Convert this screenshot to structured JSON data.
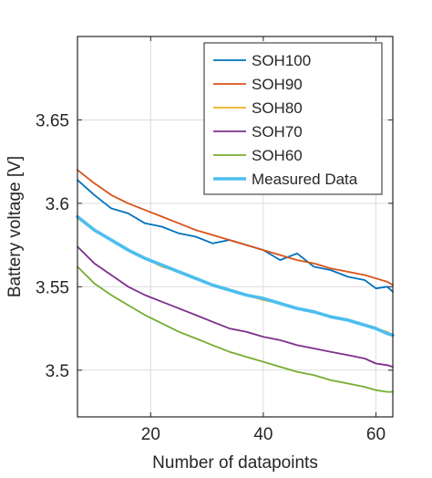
{
  "chart_data": {
    "type": "line",
    "xlabel": "Number of datapoints",
    "ylabel": "Battery voltage [V]",
    "xlim": [
      7,
      63
    ],
    "ylim": [
      3.472,
      3.7
    ],
    "xticks": [
      20,
      40,
      60
    ],
    "xtick_labels": [
      "20",
      "40",
      "60"
    ],
    "yticks": [
      3.5,
      3.55,
      3.6,
      3.65
    ],
    "ytick_labels": [
      "3.5",
      "3.55",
      "3.6",
      "3.65"
    ],
    "grid": true,
    "legend_position": "top-right",
    "series": [
      {
        "name": "SOH100",
        "color": "#0072BD",
        "x": [
          7,
          10,
          13,
          16,
          19,
          22,
          25,
          28,
          31,
          34,
          37,
          40,
          43,
          46,
          49,
          52,
          55,
          58,
          60,
          62,
          63
        ],
        "y": [
          3.614,
          3.605,
          3.597,
          3.594,
          3.588,
          3.586,
          3.582,
          3.58,
          3.576,
          3.578,
          3.575,
          3.572,
          3.566,
          3.57,
          3.562,
          3.56,
          3.556,
          3.554,
          3.549,
          3.55,
          3.547
        ]
      },
      {
        "name": "SOH90",
        "color": "#D95319",
        "x": [
          7,
          10,
          13,
          16,
          19,
          22,
          25,
          28,
          31,
          34,
          37,
          40,
          43,
          46,
          49,
          52,
          55,
          58,
          60,
          62,
          63
        ],
        "y": [
          3.62,
          3.612,
          3.605,
          3.6,
          3.596,
          3.592,
          3.588,
          3.584,
          3.581,
          3.578,
          3.575,
          3.572,
          3.569,
          3.566,
          3.564,
          3.561,
          3.559,
          3.557,
          3.555,
          3.553,
          3.551
        ]
      },
      {
        "name": "SOH80",
        "color": "#EDB120",
        "x": [
          7,
          10,
          13,
          16,
          19,
          22,
          25,
          28,
          31,
          34,
          37,
          40,
          43,
          46,
          49,
          52,
          55,
          58,
          60,
          62,
          63
        ],
        "y": [
          3.591,
          3.584,
          3.578,
          3.572,
          3.567,
          3.562,
          3.559,
          3.555,
          3.551,
          3.548,
          3.545,
          3.542,
          3.54,
          3.537,
          3.535,
          3.532,
          3.53,
          3.527,
          3.525,
          3.523,
          3.521
        ]
      },
      {
        "name": "SOH70",
        "color": "#7E2F8E",
        "x": [
          7,
          10,
          13,
          16,
          19,
          22,
          25,
          28,
          31,
          34,
          37,
          40,
          43,
          46,
          49,
          52,
          55,
          58,
          60,
          62,
          63
        ],
        "y": [
          3.574,
          3.564,
          3.557,
          3.55,
          3.545,
          3.541,
          3.537,
          3.533,
          3.529,
          3.525,
          3.523,
          3.52,
          3.518,
          3.515,
          3.513,
          3.511,
          3.509,
          3.507,
          3.504,
          3.503,
          3.502
        ]
      },
      {
        "name": "SOH60",
        "color": "#77AC30",
        "x": [
          7,
          10,
          13,
          16,
          19,
          22,
          25,
          28,
          31,
          34,
          37,
          40,
          43,
          46,
          49,
          52,
          55,
          58,
          60,
          62,
          63
        ],
        "y": [
          3.562,
          3.552,
          3.545,
          3.539,
          3.533,
          3.528,
          3.523,
          3.519,
          3.515,
          3.511,
          3.508,
          3.505,
          3.502,
          3.499,
          3.497,
          3.494,
          3.492,
          3.49,
          3.488,
          3.487,
          3.487
        ]
      },
      {
        "name": "Measured Data",
        "color": "#4DBEEE",
        "x": [
          7,
          10,
          13,
          16,
          19,
          22,
          25,
          28,
          31,
          34,
          37,
          40,
          43,
          46,
          49,
          52,
          55,
          58,
          60,
          62,
          63
        ],
        "y": [
          3.592,
          3.584,
          3.578,
          3.572,
          3.567,
          3.563,
          3.559,
          3.555,
          3.551,
          3.548,
          3.545,
          3.543,
          3.54,
          3.537,
          3.535,
          3.532,
          3.53,
          3.527,
          3.525,
          3.522,
          3.521
        ]
      }
    ]
  }
}
